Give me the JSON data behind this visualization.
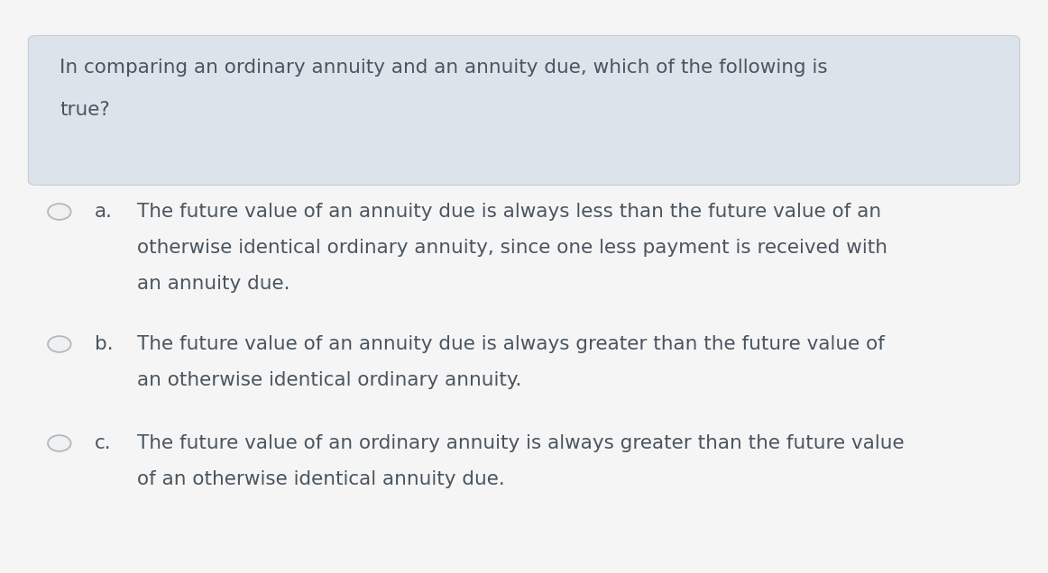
{
  "background_color": "#f5f5f5",
  "question_box_color": "#dde3ea",
  "question_box_border_color": "#c5cdd6",
  "question_text_line1": "In comparing an ordinary annuity and an annuity due, which of the following is",
  "question_text_line2": "true?",
  "question_font_size": 15.5,
  "question_text_color": "#4a555f",
  "options": [
    {
      "label": "a.",
      "lines": [
        "The future value of an annuity due is always less than the future value of an",
        "otherwise identical ordinary annuity, since one less payment is received with",
        "an annuity due."
      ]
    },
    {
      "label": "b.",
      "lines": [
        "The future value of an annuity due is always greater than the future value of",
        "an otherwise identical ordinary annuity."
      ]
    },
    {
      "label": "c.",
      "lines": [
        "The future value of an ordinary annuity is always greater than the future value",
        "of an otherwise identical annuity due."
      ]
    }
  ],
  "option_font_size": 15.5,
  "option_text_color": "#4a555f",
  "label_color": "#4a555f",
  "radio_edge_color": "#b0b8c0",
  "radio_fill_color": "#f0f0f0"
}
